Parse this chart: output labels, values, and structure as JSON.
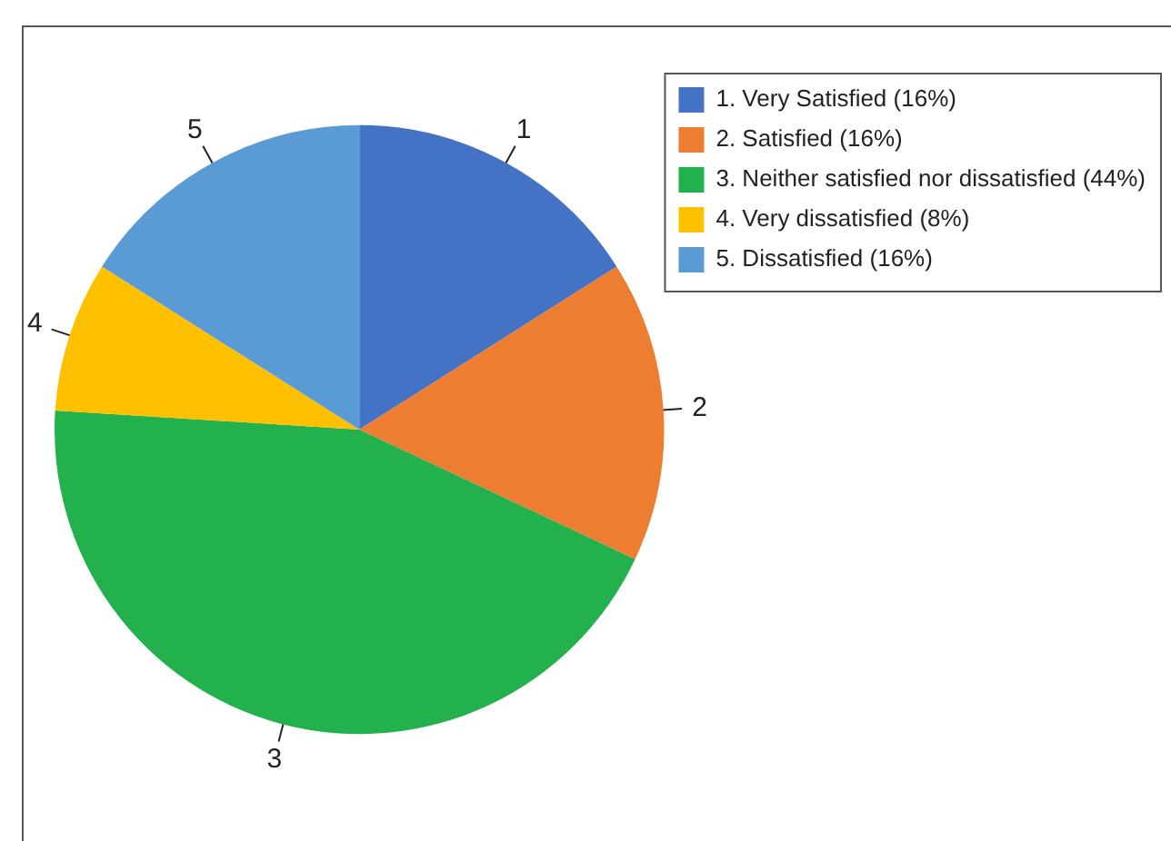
{
  "chart_data": {
    "type": "pie",
    "categories": [
      "1. Very Satisfied (16%)",
      "2. Satisfied (16%)",
      "3. Neither satisfied nor dissatisfied (44%)",
      "4. Very dissatisfied (8%)",
      "5. Dissatisfied (16%)"
    ],
    "values": [
      16,
      16,
      44,
      8,
      16
    ],
    "colors": [
      "#4472c4",
      "#ed7d31",
      "#22b14c",
      "#ffc000",
      "#5b9bd5"
    ],
    "legend": "top right",
    "annotations": [
      "1",
      "2",
      "3",
      "4",
      "5"
    ]
  }
}
